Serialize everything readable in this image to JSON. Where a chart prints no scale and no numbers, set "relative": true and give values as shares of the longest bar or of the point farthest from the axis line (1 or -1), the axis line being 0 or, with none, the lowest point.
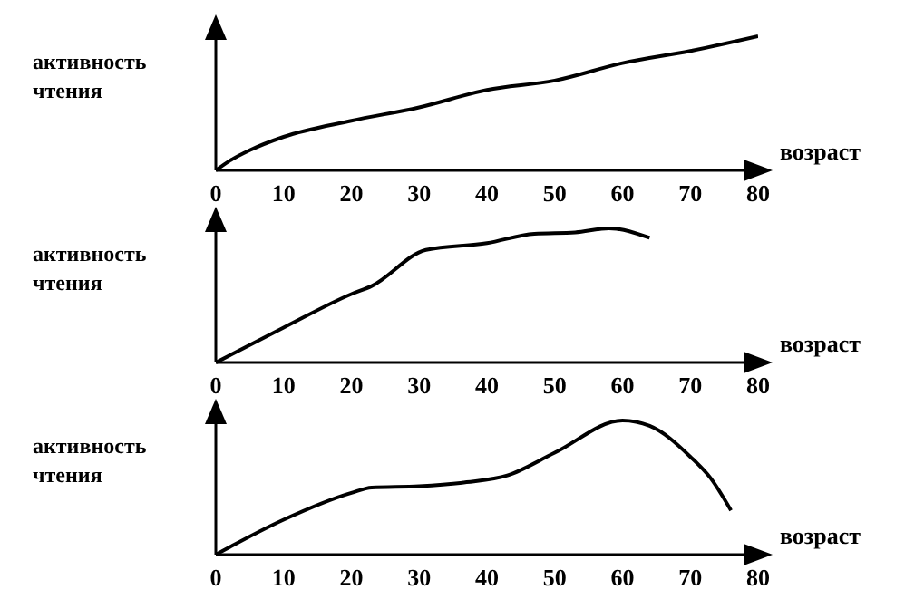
{
  "chart_data": [
    {
      "type": "line",
      "relative": true,
      "ylabel": "активность\nчтения",
      "xlabel": "возраст",
      "xlim": [
        0,
        80
      ],
      "xticks": [
        0,
        10,
        20,
        30,
        40,
        50,
        60,
        70,
        80
      ],
      "color": "#000000",
      "marker": "none",
      "x": [
        0,
        2,
        5,
        10,
        20,
        30,
        40,
        50,
        60,
        70,
        80
      ],
      "values": [
        0,
        0.07,
        0.15,
        0.25,
        0.37,
        0.47,
        0.6,
        0.67,
        0.8,
        0.89,
        1
      ]
    },
    {
      "type": "line",
      "relative": true,
      "ylabel": "активность\nчтения",
      "xlabel": "возраст",
      "xlim": [
        0,
        80
      ],
      "xticks": [
        0,
        10,
        20,
        30,
        40,
        50,
        60,
        70,
        80
      ],
      "color": "#000000",
      "marker": "none",
      "x": [
        0,
        10,
        20,
        23,
        31,
        40,
        47,
        53,
        58,
        64
      ],
      "values": [
        0,
        0.26,
        0.51,
        0.57,
        0.84,
        0.89,
        0.96,
        0.97,
        1,
        0.93
      ]
    },
    {
      "type": "line",
      "relative": true,
      "ylabel": "активность\nчтения",
      "xlabel": "возраст",
      "xlim": [
        0,
        80
      ],
      "xticks": [
        0,
        10,
        20,
        30,
        40,
        50,
        60,
        70,
        80
      ],
      "color": "#000000",
      "marker": "none",
      "x": [
        0,
        10,
        20,
        23,
        30,
        37,
        43,
        50,
        60,
        64,
        70,
        73,
        76
      ],
      "values": [
        0,
        0.26,
        0.46,
        0.5,
        0.51,
        0.54,
        0.59,
        0.76,
        1,
        0.96,
        0.73,
        0.57,
        0.33
      ]
    }
  ]
}
